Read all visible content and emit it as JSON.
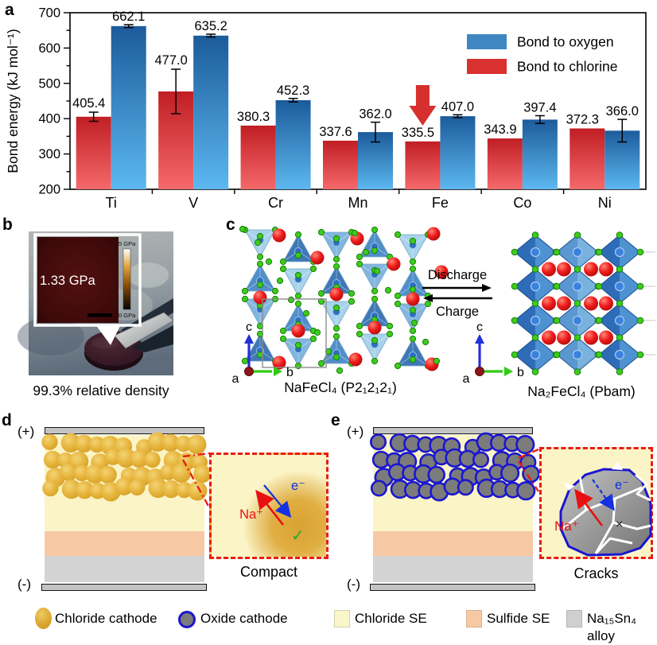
{
  "panel_labels": {
    "a": "a",
    "b": "b",
    "c": "c",
    "d": "d",
    "e": "e"
  },
  "chart_data": {
    "type": "bar",
    "title": "",
    "ylabel": "Bond energy (kJ mol⁻¹)",
    "ylim": [
      200,
      700
    ],
    "ytick_step": 100,
    "minor_tick_step": 50,
    "grid": false,
    "legend_position": "top-right",
    "categories": [
      "Ti",
      "V",
      "Cr",
      "Mn",
      "Fe",
      "Co",
      "Ni"
    ],
    "series": [
      {
        "name": "Bond to chlorine",
        "values": [
          405.4,
          477.0,
          380.3,
          337.6,
          335.5,
          343.9,
          372.3
        ],
        "errors": [
          13,
          63,
          0,
          0,
          0,
          0,
          0
        ],
        "color_top": "#c01e24",
        "color_bottom": "#f5696b",
        "legend_color": "#d93030"
      },
      {
        "name": "Bond to oxygen",
        "values": [
          662.1,
          635.2,
          452.3,
          362.0,
          407.0,
          397.4,
          366.0
        ],
        "errors": [
          4,
          4,
          5,
          28,
          4,
          11,
          32
        ],
        "color_top": "#1c5b9b",
        "color_bottom": "#5cb8f0",
        "legend_color": "#3e87c3"
      }
    ],
    "highlight": {
      "category": "Fe",
      "series": "Bond to chlorine",
      "marker": "down-arrow",
      "color": "#d5302e"
    }
  },
  "panel_b": {
    "inset_value": "1.33 GPa",
    "colorbar_max": "5 GPa",
    "colorbar_min": "0 GPa",
    "caption": "99.3% relative density"
  },
  "panel_c": {
    "forward_label": "Discharge",
    "reverse_label": "Charge",
    "left_caption": "NaFeCl₄ (P2₁2₁2₁)",
    "right_caption": "Na₂FeCl₄ (Pbam)",
    "axis_a": "a",
    "axis_b": "b",
    "axis_c": "c"
  },
  "panel_d": {
    "positive_label": "(+)",
    "negative_label": "(-)",
    "ion_label": "Na⁺",
    "electron_label": "e⁻",
    "check_mark": "✓",
    "caption": "Compact"
  },
  "panel_e": {
    "positive_label": "(+)",
    "negative_label": "(-)",
    "ion_label": "Na⁺",
    "electron_label": "e⁻",
    "cross_mark": "×",
    "caption": "Cracks"
  },
  "legend": {
    "items": [
      {
        "label": "Chloride cathode"
      },
      {
        "label": "Oxide cathode"
      },
      {
        "label": "Chloride SE"
      },
      {
        "label": "Sulfide SE"
      },
      {
        "label": "Na₁₅Sn₄ alloy"
      }
    ]
  },
  "colors": {
    "chloride_cathode": "#ddab31",
    "oxide_cathode_fill": "#7b7b7b",
    "oxide_cathode_ring": "#1b16cf",
    "chloride_se": "#fbf4c6",
    "sulfide_se": "#f6c9a4",
    "alloy": "#d3d3d3",
    "electrode": "#c4c4c4",
    "inset_border": "#ea1c16",
    "na_arrow": "#e81010",
    "e_arrow": "#1430e0",
    "check": "#28a428"
  }
}
